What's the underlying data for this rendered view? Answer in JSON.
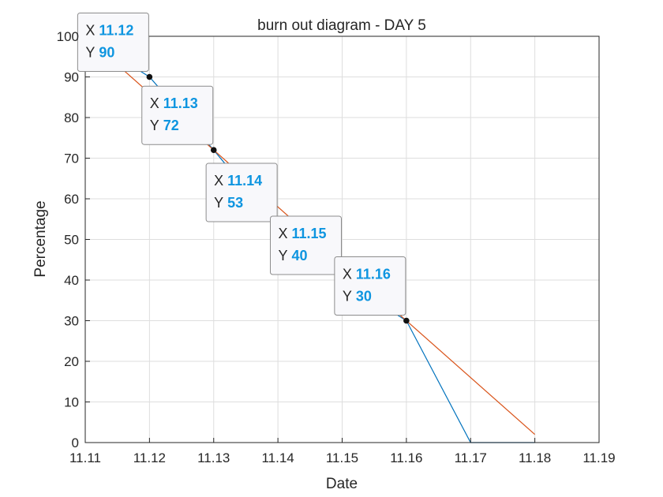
{
  "chart_data": {
    "type": "line",
    "title": "burn out diagram - DAY 5",
    "xlabel": "Date",
    "ylabel": "Percentage",
    "xlim": [
      11.11,
      11.19
    ],
    "ylim": [
      0,
      100
    ],
    "x_ticks": [
      "11.11",
      "11.12",
      "11.13",
      "11.14",
      "11.15",
      "11.16",
      "11.17",
      "11.18",
      "11.19"
    ],
    "y_ticks": [
      "0",
      "10",
      "20",
      "30",
      "40",
      "50",
      "60",
      "70",
      "80",
      "90",
      "100"
    ],
    "grid": true,
    "series": [
      {
        "color": "#0072BD",
        "x": [
          11.11,
          11.12,
          11.13,
          11.14,
          11.15,
          11.16,
          11.17,
          11.18
        ],
        "y": [
          100,
          90,
          72,
          53,
          40,
          30,
          0,
          0
        ]
      },
      {
        "color": "#D95319",
        "x": [
          11.11,
          11.18
        ],
        "y": [
          100,
          2
        ]
      }
    ],
    "markers": [
      {
        "x": 11.12,
        "y": 90,
        "color": "#111111"
      },
      {
        "x": 11.13,
        "y": 72,
        "color": "#111111"
      },
      {
        "x": 11.14,
        "y": 53,
        "color": "#a0a0a0"
      },
      {
        "x": 11.15,
        "y": 40,
        "color": "#a0a0a0"
      },
      {
        "x": 11.16,
        "y": 30,
        "color": "#111111"
      }
    ],
    "datatips": [
      {
        "x_prefix": "X",
        "x_value": "11.12",
        "y_prefix": "Y",
        "y_value": "90"
      },
      {
        "x_prefix": "X",
        "x_value": "11.13",
        "y_prefix": "Y",
        "y_value": "72"
      },
      {
        "x_prefix": "X",
        "x_value": "11.14",
        "y_prefix": "Y",
        "y_value": "53"
      },
      {
        "x_prefix": "X",
        "x_value": "11.15",
        "y_prefix": "Y",
        "y_value": "40"
      },
      {
        "x_prefix": "X",
        "x_value": "11.16",
        "y_prefix": "Y",
        "y_value": "30"
      }
    ]
  }
}
